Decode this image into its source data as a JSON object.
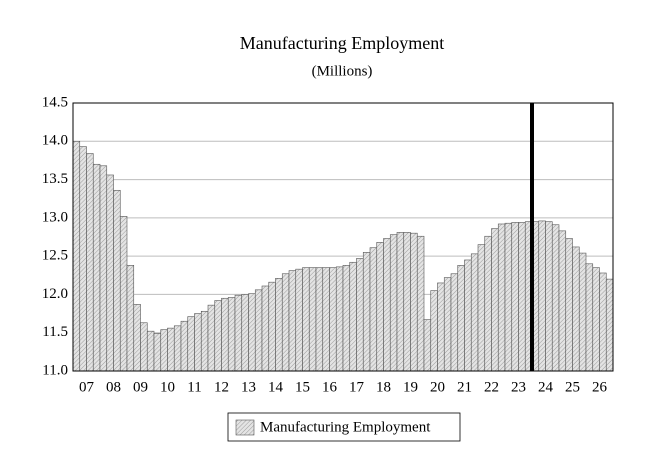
{
  "chart_data": {
    "type": "bar",
    "title": "Manufacturing Employment",
    "subtitle": "(Millions)",
    "categories": [
      "07",
      null,
      null,
      null,
      "08",
      null,
      null,
      null,
      "09",
      null,
      null,
      null,
      "10",
      null,
      null,
      null,
      "11",
      null,
      null,
      null,
      "12",
      null,
      null,
      null,
      "13",
      null,
      null,
      null,
      "14",
      null,
      null,
      null,
      "15",
      null,
      null,
      null,
      "16",
      null,
      null,
      null,
      "17",
      null,
      null,
      null,
      "18",
      null,
      null,
      null,
      "19",
      null,
      null,
      null,
      "20",
      null,
      null,
      null,
      "21",
      null,
      null,
      null,
      "22",
      null,
      null,
      null,
      "23",
      null,
      null,
      null,
      "24",
      null,
      null,
      null,
      "25",
      null,
      null,
      null,
      "26",
      null,
      null,
      null
    ],
    "series": [
      {
        "name": "Manufacturing Employment",
        "color": "#d9d9d9",
        "values": [
          14.0,
          13.93,
          13.84,
          13.7,
          13.68,
          13.56,
          13.36,
          13.02,
          12.38,
          11.87,
          11.63,
          11.52,
          11.49,
          11.54,
          11.56,
          11.59,
          11.65,
          11.71,
          11.75,
          11.78,
          11.86,
          11.92,
          11.95,
          11.96,
          11.99,
          12.0,
          12.01,
          12.06,
          12.11,
          12.16,
          12.21,
          12.27,
          12.31,
          12.33,
          12.35,
          12.35,
          12.35,
          12.35,
          12.35,
          12.36,
          12.38,
          12.42,
          12.47,
          12.55,
          12.61,
          12.68,
          12.73,
          12.78,
          12.81,
          12.81,
          12.8,
          12.76,
          11.67,
          12.05,
          12.15,
          12.22,
          12.27,
          12.38,
          12.45,
          12.53,
          12.65,
          12.76,
          12.86,
          12.92,
          12.93,
          12.94,
          12.94,
          12.95,
          12.95,
          12.96,
          12.95,
          12.91,
          12.83,
          12.73,
          12.62,
          12.54,
          12.4,
          12.35,
          12.28,
          12.2
        ]
      }
    ],
    "ylim": [
      11,
      14.5
    ],
    "yticks": [
      {
        "value": 11,
        "label": "11.0"
      },
      11.5,
      {
        "value": 12,
        "label": "12.0"
      },
      12.5,
      {
        "value": 13,
        "label": "13.0"
      },
      13.5,
      {
        "value": 14,
        "label": "14.0"
      },
      14.5
    ],
    "grid": true,
    "vline_before_category": 68,
    "legend": "bottom"
  }
}
